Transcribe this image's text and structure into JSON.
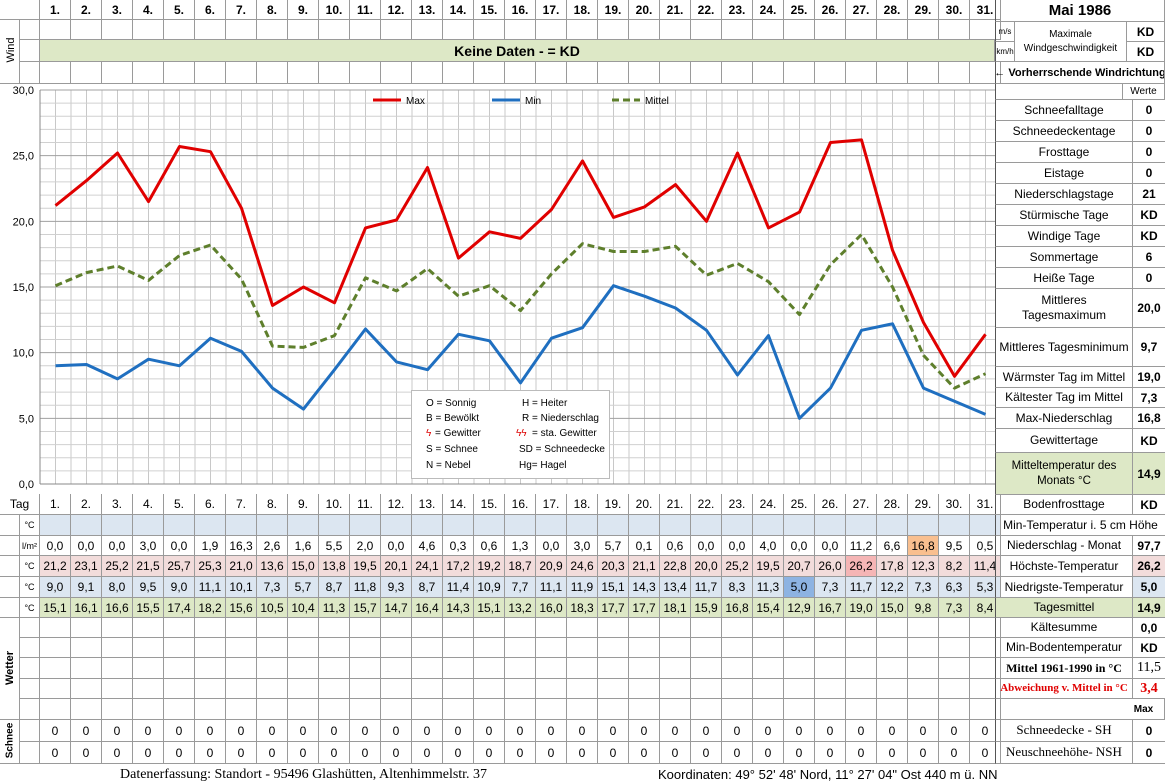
{
  "header": {
    "month_title": "Mai 1986",
    "wind_label": "Wind",
    "unit_ms": "m/s",
    "unit_kmh": "km/h",
    "max_wind_label": "Maximale Windgeschwindigkeit",
    "max_wind_ms": "KD",
    "max_wind_kmh": "KD",
    "no_data_banner": "Keine Daten -  = KD",
    "wind_direction_label": "← Vorherrschende Windrichtung",
    "werte_label": "Werte"
  },
  "days": [
    "1.",
    "2.",
    "3.",
    "4.",
    "5.",
    "6.",
    "7.",
    "8.",
    "9.",
    "10.",
    "11.",
    "12.",
    "13.",
    "14.",
    "15.",
    "16.",
    "17.",
    "18.",
    "19.",
    "20.",
    "21.",
    "22.",
    "23.",
    "24.",
    "25.",
    "26.",
    "27.",
    "28.",
    "29.",
    "30.",
    "31."
  ],
  "tag_label": "Tag",
  "stats": [
    {
      "label": "Schneefalltage",
      "value": "0"
    },
    {
      "label": "Schneedeckentage",
      "value": "0"
    },
    {
      "label": "Frosttage",
      "value": "0"
    },
    {
      "label": "Eistage",
      "value": "0"
    },
    {
      "label": "Niederschlagstage",
      "value": "21"
    },
    {
      "label": "Stürmische Tage",
      "value": "KD"
    },
    {
      "label": "Windige Tage",
      "value": "KD"
    },
    {
      "label": "Sommertage",
      "value": "6"
    },
    {
      "label": "Heiße Tage",
      "value": "0"
    },
    {
      "label": "Mittleres Tagesmaximum",
      "value": "20,0"
    },
    {
      "label": "Mittleres Tagesminimum",
      "value": "9,7"
    },
    {
      "label": "Wärmster Tag im Mittel",
      "value": "19,0"
    },
    {
      "label": "Kältester Tag im Mittel",
      "value": "7,3"
    },
    {
      "label": "Max-Niederschlag",
      "value": "16,8"
    },
    {
      "label": "Gewittertage",
      "value": "KD"
    },
    {
      "label": "Mitteltemperatur des Monats °C",
      "value": "14,9"
    },
    {
      "label": "Bodenfrosttage",
      "value": "KD"
    }
  ],
  "rows": {
    "min5cm": {
      "unit": "°C",
      "label": "Min-Temperatur i. 5 cm Höhe"
    },
    "precip": {
      "unit": "l/m²",
      "label": "Niederschlag - Monat",
      "total": "97,7",
      "values": [
        "0,0",
        "0,0",
        "0,0",
        "3,0",
        "0,0",
        "1,9",
        "16,3",
        "2,6",
        "1,6",
        "5,5",
        "2,0",
        "0,0",
        "4,6",
        "0,3",
        "0,6",
        "1,3",
        "0,0",
        "3,0",
        "5,7",
        "0,1",
        "0,6",
        "0,0",
        "0,0",
        "4,0",
        "0,0",
        "0,0",
        "11,2",
        "6,6",
        "16,8",
        "9,5",
        "0,5"
      ]
    },
    "tmax": {
      "unit": "°C",
      "label": "Höchste-Temperatur",
      "total": "26,2",
      "values": [
        "21,2",
        "23,1",
        "25,2",
        "21,5",
        "25,7",
        "25,3",
        "21,0",
        "13,6",
        "15,0",
        "13,8",
        "19,5",
        "20,1",
        "24,1",
        "17,2",
        "19,2",
        "18,7",
        "20,9",
        "24,6",
        "20,3",
        "21,1",
        "22,8",
        "20,0",
        "25,2",
        "19,5",
        "20,7",
        "26,0",
        "26,2",
        "17,8",
        "12,3",
        "8,2",
        "11,4"
      ]
    },
    "tmin": {
      "unit": "°C",
      "label": "Niedrigste-Temperatur",
      "total": "5,0",
      "values": [
        "9,0",
        "9,1",
        "8,0",
        "9,5",
        "9,0",
        "11,1",
        "10,1",
        "7,3",
        "5,7",
        "8,7",
        "11,8",
        "9,3",
        "8,7",
        "11,4",
        "10,9",
        "7,7",
        "11,1",
        "11,9",
        "15,1",
        "14,3",
        "13,4",
        "11,7",
        "8,3",
        "11,3",
        "5,0",
        "7,3",
        "11,7",
        "12,2",
        "7,3",
        "6,3",
        "5,3"
      ]
    },
    "tmean": {
      "unit": "°C",
      "label": "Tagesmittel",
      "total": "14,9",
      "values": [
        "15,1",
        "16,1",
        "16,6",
        "15,5",
        "17,4",
        "18,2",
        "15,6",
        "10,5",
        "10,4",
        "11,3",
        "15,7",
        "14,7",
        "16,4",
        "14,3",
        "15,1",
        "13,2",
        "16,0",
        "18,3",
        "17,7",
        "17,7",
        "18,1",
        "15,9",
        "16,8",
        "15,4",
        "12,9",
        "16,7",
        "19,0",
        "15,0",
        "9,8",
        "7,3",
        "8,4"
      ]
    }
  },
  "lower_stats": [
    {
      "label": "Kältesumme",
      "value": "0,0"
    },
    {
      "label": "Min-Bodentemperatur",
      "value": "KD"
    },
    {
      "label": "Mittel 1961-1990 in °C",
      "value": "11,5"
    },
    {
      "label": "Abweichung v. Mittel in °C",
      "value": "3,4"
    }
  ],
  "wetter_label": "Wetter",
  "schnee_label": "Schnee",
  "max_label": "Max",
  "snow": {
    "sh_label": "Schneedecke -  SH",
    "sh_value": "0",
    "nsh_label": "Neuschneehöhe- NSH",
    "nsh_value": "0",
    "sh_values": [
      "0",
      "0",
      "0",
      "0",
      "0",
      "0",
      "0",
      "0",
      "0",
      "0",
      "0",
      "0",
      "0",
      "0",
      "0",
      "0",
      "0",
      "0",
      "0",
      "0",
      "0",
      "0",
      "0",
      "0",
      "0",
      "0",
      "0",
      "0",
      "0",
      "0",
      "0"
    ],
    "nsh_values": [
      "0",
      "0",
      "0",
      "0",
      "0",
      "0",
      "0",
      "0",
      "0",
      "0",
      "0",
      "0",
      "0",
      "0",
      "0",
      "0",
      "0",
      "0",
      "0",
      "0",
      "0",
      "0",
      "0",
      "0",
      "0",
      "0",
      "0",
      "0",
      "0",
      "0",
      "0"
    ]
  },
  "legend": {
    "sonnig": "O = Sonnig",
    "heiter": "H = Heiter",
    "bewoelkt": "B = Bewölkt",
    "niederschlag": "R = Niederschlag",
    "gewitter_sym": "ϟ",
    "gewitter": "= Gewitter",
    "sta_gewitter_sym": "ϟϟ",
    "sta_gewitter": "= sta. Gewitter",
    "schnee": "S = Schnee",
    "schneedecke": "SD = Schneedecke",
    "nebel": "N = Nebel",
    "hagel": "Hg= Hagel"
  },
  "footer": {
    "left": "Datenerfassung:  Standort -   95496  Glashütten, Altenhimmelstr. 37",
    "right": "Koordinaten:  49° 52' 48' Nord,  11° 27' 04\" Ost   440 m ü. NN"
  },
  "chart_data": {
    "type": "line",
    "x": [
      1,
      2,
      3,
      4,
      5,
      6,
      7,
      8,
      9,
      10,
      11,
      12,
      13,
      14,
      15,
      16,
      17,
      18,
      19,
      20,
      21,
      22,
      23,
      24,
      25,
      26,
      27,
      28,
      29,
      30,
      31
    ],
    "ylim": [
      0,
      30
    ],
    "yticks": [
      "0,0",
      "5,0",
      "10,0",
      "15,0",
      "20,0",
      "25,0",
      "30,0"
    ],
    "legend_position": "top",
    "grid": true,
    "series": [
      {
        "name": "Max",
        "color": "#e00000",
        "dash": false,
        "values": [
          21.2,
          23.1,
          25.2,
          21.5,
          25.7,
          25.3,
          21.0,
          13.6,
          15.0,
          13.8,
          19.5,
          20.1,
          24.1,
          17.2,
          19.2,
          18.7,
          20.9,
          24.6,
          20.3,
          21.1,
          22.8,
          20.0,
          25.2,
          19.5,
          20.7,
          26.0,
          26.2,
          17.8,
          12.3,
          8.2,
          11.4
        ]
      },
      {
        "name": "Min",
        "color": "#1f6fc0",
        "dash": false,
        "values": [
          9.0,
          9.1,
          8.0,
          9.5,
          9.0,
          11.1,
          10.1,
          7.3,
          5.7,
          8.7,
          11.8,
          9.3,
          8.7,
          11.4,
          10.9,
          7.7,
          11.1,
          11.9,
          15.1,
          14.3,
          13.4,
          11.7,
          8.3,
          11.3,
          5.0,
          7.3,
          11.7,
          12.2,
          7.3,
          6.3,
          5.3
        ]
      },
      {
        "name": "Mittel",
        "color": "#5e7f2c",
        "dash": true,
        "values": [
          15.1,
          16.1,
          16.6,
          15.5,
          17.4,
          18.2,
          15.6,
          10.5,
          10.4,
          11.3,
          15.7,
          14.7,
          16.4,
          14.3,
          15.1,
          13.2,
          16.0,
          18.3,
          17.7,
          17.7,
          18.1,
          15.9,
          16.8,
          15.4,
          12.9,
          16.7,
          19.0,
          15.0,
          9.8,
          7.3,
          8.4
        ]
      }
    ]
  }
}
